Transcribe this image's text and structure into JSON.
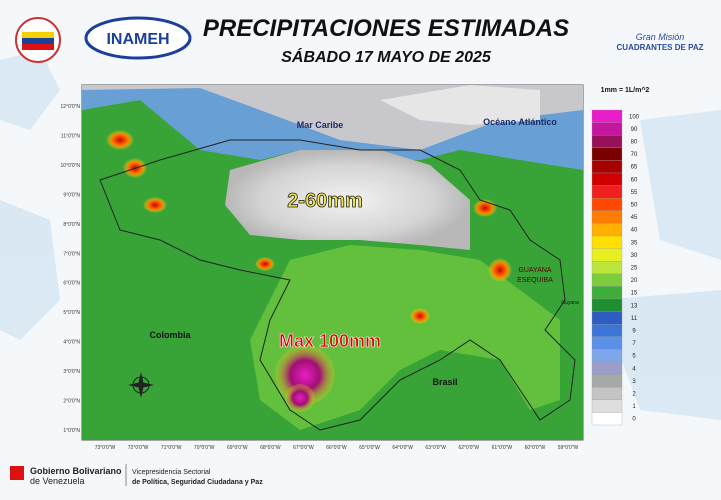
{
  "header": {
    "title": "PRECIPITACIONES ESTIMADAS",
    "subtitle": "SÁBADO 17 MAYO DE 2025",
    "logo_left": "INAMEH",
    "logo_right_top": "Gran Misión",
    "logo_right_bottom": "CUADRANTES DE PAZ"
  },
  "map": {
    "labels": {
      "sea": "Mar Caribe",
      "ocean": "Océano Atlántico",
      "range": "2-60mm",
      "max": "Max 100mm",
      "colombia": "Colombia",
      "brasil": "Brasil",
      "guayana": "GUAYANA",
      "esequiba": "ESEQUIBA",
      "guyana": "Guyana"
    },
    "lat_labels": [
      "12°0'0\"N",
      "11°0'0\"N",
      "10°0'0\"N",
      "9°0'0\"N",
      "8°0'0\"N",
      "7°0'0\"N",
      "6°0'0\"N",
      "5°0'0\"N",
      "4°0'0\"N",
      "3°0'0\"N",
      "2°0'0\"N",
      "1°0'0\"N"
    ],
    "lon_labels": [
      "73°0'0\"W",
      "72°0'0\"W",
      "71°0'0\"W",
      "70°0'0\"W",
      "69°0'0\"W",
      "68°0'0\"W",
      "67°0'0\"W",
      "66°0'0\"W",
      "65°0'0\"W",
      "64°0'0\"W",
      "63°0'0\"W",
      "62°0'0\"W",
      "61°0'0\"W",
      "60°0'0\"W",
      "59°0'0\"W"
    ]
  },
  "legend": {
    "title": "1mm = 1L/m^2",
    "items": [
      {
        "value": 100,
        "color": "#e81ec8"
      },
      {
        "value": 90,
        "color": "#c4169e"
      },
      {
        "value": 80,
        "color": "#96105a"
      },
      {
        "value": 70,
        "color": "#7a0000"
      },
      {
        "value": 65,
        "color": "#a80000"
      },
      {
        "value": 60,
        "color": "#d00000"
      },
      {
        "value": 55,
        "color": "#f02020"
      },
      {
        "value": 50,
        "color": "#ff4800"
      },
      {
        "value": 45,
        "color": "#ff7c00"
      },
      {
        "value": 40,
        "color": "#ffb000"
      },
      {
        "value": 35,
        "color": "#ffe000"
      },
      {
        "value": 30,
        "color": "#e6f020"
      },
      {
        "value": 25,
        "color": "#bce63c"
      },
      {
        "value": 20,
        "color": "#7ccc3c"
      },
      {
        "value": 15,
        "color": "#3eae3a"
      },
      {
        "value": 13,
        "color": "#1e8e30"
      },
      {
        "value": 11,
        "color": "#2e5cc0"
      },
      {
        "value": 9,
        "color": "#3c74d8"
      },
      {
        "value": 7,
        "color": "#5a90e6"
      },
      {
        "value": 5,
        "color": "#7ea6ea"
      },
      {
        "value": 4,
        "color": "#9a9ec8"
      },
      {
        "value": 3,
        "color": "#a8a8a8"
      },
      {
        "value": 2,
        "color": "#c4c4c4"
      },
      {
        "value": 1,
        "color": "#dedede"
      },
      {
        "value": 0,
        "color": "#ffffff"
      }
    ]
  },
  "footer": {
    "gov_line1": "Gobierno Bolivariano",
    "gov_line2": "de Venezuela",
    "vp_line1": "Vicepresidencia Sectorial",
    "vp_line2": "de Política, Seguridad Ciudadana y Paz"
  }
}
